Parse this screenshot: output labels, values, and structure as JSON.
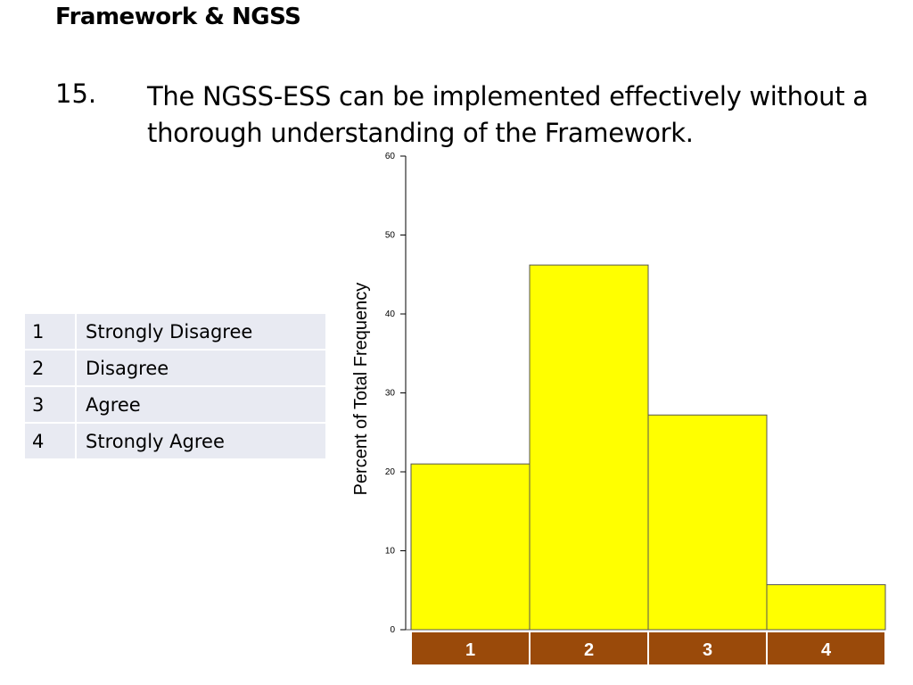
{
  "slide": {
    "title": "Framework & NGSS",
    "question_number": "15.",
    "question_text": "The NGSS-ESS can be implemented effectively without a thorough understanding of the Framework."
  },
  "legend": {
    "rows": [
      {
        "code": "1",
        "label": "Strongly Disagree"
      },
      {
        "code": "2",
        "label": "Disagree"
      },
      {
        "code": "3",
        "label": "Agree"
      },
      {
        "code": "4",
        "label": "Strongly Agree"
      }
    ]
  },
  "colors": {
    "bar_fill": "#ffff00",
    "bar_stroke": "#555555",
    "category_box": "#9a4a0a",
    "category_text": "#ffffff",
    "legend_bg": "#e8eaf2"
  },
  "chart_data": {
    "type": "bar",
    "categories": [
      "1",
      "2",
      "3",
      "4"
    ],
    "values": [
      21,
      46.2,
      27.2,
      5.7
    ],
    "ylabel": "Percent of Total Frequency",
    "xlabel": "",
    "ylim": [
      0,
      60
    ],
    "yticks": [
      0,
      10,
      20,
      30,
      40,
      50,
      60
    ],
    "grid": false
  }
}
